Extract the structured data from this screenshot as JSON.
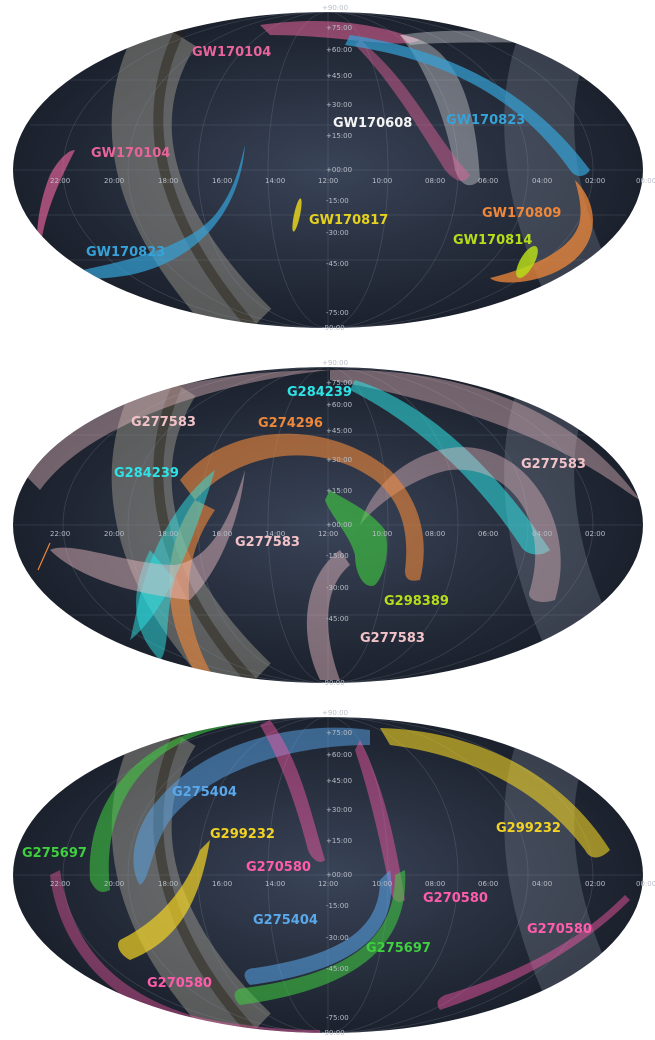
{
  "colors": {
    "white": "#f4f4f4",
    "pink": "#e8649b",
    "blue": "#35a3d8",
    "orange": "#f0883a",
    "yellow": "#e6d21e",
    "lime": "#b7dd1a",
    "cyan": "#2ee3e6",
    "rose": "#f2c2c8",
    "green": "#3fcf3f",
    "lightblue": "#5aa8ec",
    "gold": "#f2d324",
    "magenta": "#ff5cab"
  },
  "axes": {
    "dec_top": "+90:00",
    "dec_75": "+75:00",
    "dec_60": "+60:00",
    "dec_45": "+45:00",
    "dec_30": "+30:00",
    "dec_15": "+15:00",
    "dec_0": "+00:00",
    "dec_m15": "-15:00",
    "dec_m30": "-30:00",
    "dec_m45": "-45:00",
    "dec_m75": "-75:00",
    "dec_bottom": "-90:00",
    "ra": [
      "22:00",
      "20:00",
      "18:00",
      "16:00",
      "14:00",
      "12:00",
      "10:00",
      "08:00",
      "06:00",
      "04:00",
      "02:00",
      "00:00"
    ]
  },
  "panels": [
    {
      "labels": [
        {
          "text": "GW170104",
          "color": "pink"
        },
        {
          "text": "GW170608",
          "color": "white"
        },
        {
          "text": "GW170823",
          "color": "blue"
        },
        {
          "text": "GW170104",
          "color": "pink"
        },
        {
          "text": "GW170817",
          "color": "yellow"
        },
        {
          "text": "GW170809",
          "color": "orange"
        },
        {
          "text": "GW170814",
          "color": "lime"
        },
        {
          "text": "GW170823",
          "color": "blue"
        }
      ]
    },
    {
      "labels": [
        {
          "text": "G284239",
          "color": "cyan"
        },
        {
          "text": "G277583",
          "color": "rose"
        },
        {
          "text": "G274296",
          "color": "orange"
        },
        {
          "text": "G277583",
          "color": "rose"
        },
        {
          "text": "G284239",
          "color": "cyan"
        },
        {
          "text": "G277583",
          "color": "rose"
        },
        {
          "text": "G298389",
          "color": "lime"
        },
        {
          "text": "G277583",
          "color": "rose"
        }
      ]
    },
    {
      "labels": [
        {
          "text": "G275404",
          "color": "lightblue"
        },
        {
          "text": "G299232",
          "color": "gold"
        },
        {
          "text": "G299232",
          "color": "gold"
        },
        {
          "text": "G275697",
          "color": "green"
        },
        {
          "text": "G270580",
          "color": "magenta"
        },
        {
          "text": "G270580",
          "color": "magenta"
        },
        {
          "text": "G275404",
          "color": "lightblue"
        },
        {
          "text": "G270580",
          "color": "magenta"
        },
        {
          "text": "G275697",
          "color": "green"
        },
        {
          "text": "G270580",
          "color": "magenta"
        }
      ]
    }
  ]
}
